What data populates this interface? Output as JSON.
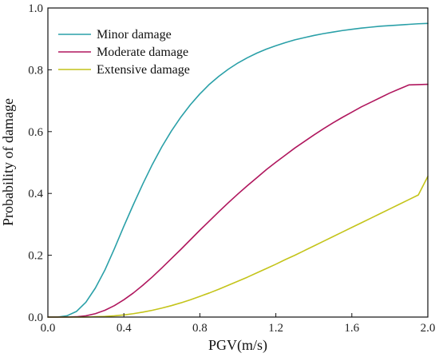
{
  "chart_data": {
    "type": "line",
    "xlabel": "PGV(m/s)",
    "ylabel": "Probability of damage",
    "xlim": [
      0.0,
      2.0
    ],
    "ylim": [
      0.0,
      1.0
    ],
    "x_ticks": [
      "0.0",
      "0.4",
      "0.8",
      "1.2",
      "1.6",
      "2.0"
    ],
    "y_ticks": [
      "0.0",
      "0.2",
      "0.4",
      "0.6",
      "0.8",
      "1.0"
    ],
    "grid": false,
    "legend_position": "top-left",
    "x": [
      0.05,
      0.1,
      0.15,
      0.2,
      0.25,
      0.3,
      0.35,
      0.4,
      0.45,
      0.5,
      0.55,
      0.6,
      0.65,
      0.7,
      0.75,
      0.8,
      0.85,
      0.9,
      0.95,
      1.0,
      1.05,
      1.1,
      1.15,
      1.2,
      1.25,
      1.3,
      1.35,
      1.4,
      1.45,
      1.5,
      1.55,
      1.6,
      1.65,
      1.7,
      1.75,
      1.8,
      1.85,
      1.9,
      1.95,
      2.0
    ],
    "series": [
      {
        "name": "Minor damage",
        "color": "#2aa0a8",
        "values": [
          0.0,
          0.004,
          0.018,
          0.048,
          0.094,
          0.152,
          0.221,
          0.294,
          0.364,
          0.431,
          0.494,
          0.551,
          0.602,
          0.647,
          0.687,
          0.722,
          0.753,
          0.779,
          0.802,
          0.822,
          0.839,
          0.854,
          0.867,
          0.878,
          0.888,
          0.897,
          0.904,
          0.911,
          0.917,
          0.922,
          0.927,
          0.931,
          0.935,
          0.938,
          0.941,
          0.943,
          0.945,
          0.947,
          0.949,
          0.95
        ]
      },
      {
        "name": "Moderate damage",
        "color": "#b0175e",
        "values": [
          0.0,
          0.0,
          0.001,
          0.004,
          0.011,
          0.022,
          0.037,
          0.056,
          0.078,
          0.103,
          0.13,
          0.159,
          0.189,
          0.219,
          0.25,
          0.281,
          0.311,
          0.341,
          0.37,
          0.398,
          0.425,
          0.451,
          0.477,
          0.501,
          0.524,
          0.547,
          0.568,
          0.589,
          0.609,
          0.628,
          0.646,
          0.663,
          0.68,
          0.695,
          0.71,
          0.725,
          0.738,
          0.751,
          0.752,
          0.753
        ]
      },
      {
        "name": "Extensive damage",
        "color": "#c4c41a",
        "values": [
          0.0,
          0.0,
          0.0,
          0.0,
          0.001,
          0.002,
          0.004,
          0.007,
          0.011,
          0.016,
          0.022,
          0.029,
          0.037,
          0.046,
          0.056,
          0.067,
          0.078,
          0.09,
          0.103,
          0.116,
          0.129,
          0.143,
          0.157,
          0.171,
          0.186,
          0.2,
          0.215,
          0.23,
          0.245,
          0.26,
          0.275,
          0.29,
          0.305,
          0.32,
          0.335,
          0.35,
          0.365,
          0.38,
          0.395,
          0.455
        ]
      }
    ]
  }
}
